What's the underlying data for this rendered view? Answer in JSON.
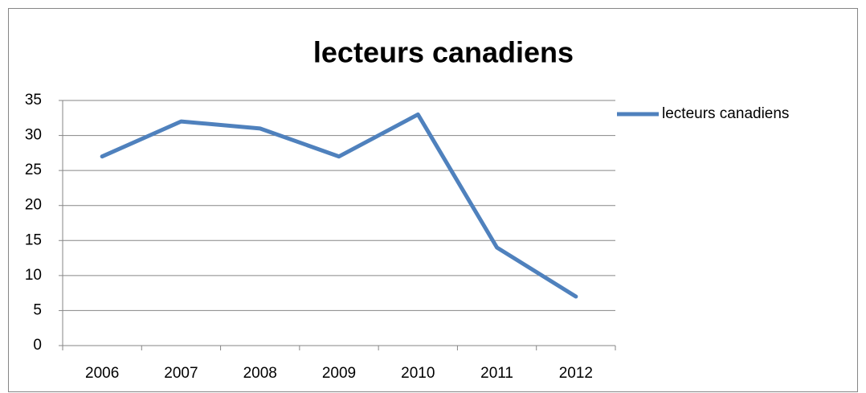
{
  "chart_data": {
    "type": "line",
    "title": "lecteurs canadiens",
    "categories": [
      "2006",
      "2007",
      "2008",
      "2009",
      "2010",
      "2011",
      "2012"
    ],
    "series": [
      {
        "name": "lecteurs canadiens",
        "color": "#4f81bd",
        "values": [
          27,
          32,
          31,
          27,
          33,
          14,
          7
        ]
      }
    ],
    "ylim": [
      0,
      35
    ],
    "yticks": [
      0,
      5,
      10,
      15,
      20,
      25,
      30,
      35
    ],
    "grid": true,
    "legend": "right"
  }
}
